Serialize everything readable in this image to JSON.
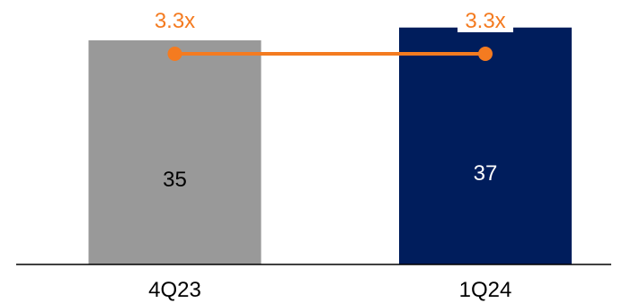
{
  "chart_data": {
    "type": "bar",
    "categories": [
      "4Q23",
      "1Q24"
    ],
    "series": [
      {
        "type": "bar",
        "values": [
          35,
          37
        ],
        "value_labels": [
          "35",
          "37"
        ],
        "colors": [
          "#999999",
          "#001d5c"
        ],
        "label_colors": [
          "#000000",
          "#ffffff"
        ]
      },
      {
        "type": "line",
        "values": [
          3.3,
          3.3
        ],
        "value_labels": [
          "3.3x",
          "3.3x"
        ],
        "color": "#f47b20"
      }
    ],
    "title": "",
    "xlabel": "",
    "ylabel": "",
    "grid": false,
    "legend": "none"
  }
}
